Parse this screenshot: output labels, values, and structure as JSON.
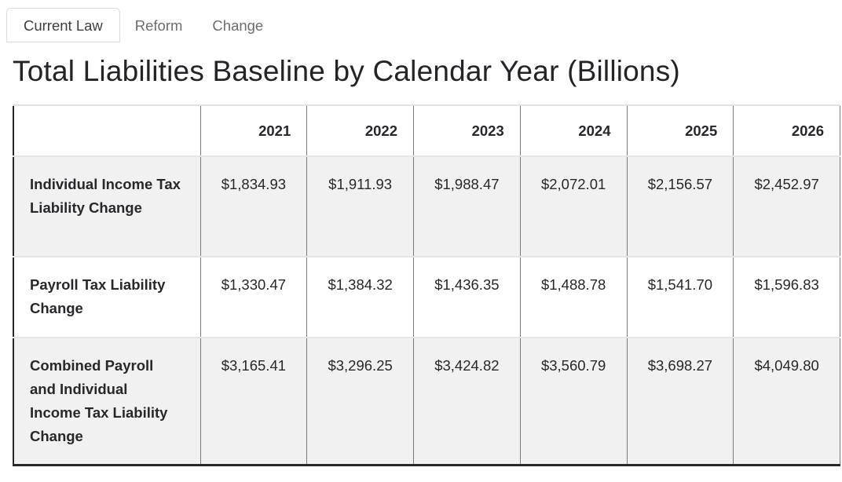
{
  "tabs": [
    {
      "label": "Current Law",
      "active": true
    },
    {
      "label": "Reform",
      "active": false
    },
    {
      "label": "Change",
      "active": false
    }
  ],
  "title": "Total Liabilities Baseline by Calendar Year (Billions)",
  "table": {
    "years": [
      "2021",
      "2022",
      "2023",
      "2024",
      "2025",
      "2026"
    ],
    "rows": [
      {
        "label": "Individual Income Tax Liability Change",
        "values": [
          "$1,834.93",
          "$1,911.93",
          "$1,988.47",
          "$2,072.01",
          "$2,156.57",
          "$2,452.97"
        ]
      },
      {
        "label": "Payroll Tax Liability Change",
        "values": [
          "$1,330.47",
          "$1,384.32",
          "$1,436.35",
          "$1,488.78",
          "$1,541.70",
          "$1,596.83"
        ]
      },
      {
        "label": "Combined Payroll and Individual Income Tax Liability Change",
        "values": [
          "$3,165.41",
          "$3,296.25",
          "$3,424.82",
          "$3,560.79",
          "$3,698.27",
          "$4,049.80"
        ]
      }
    ]
  },
  "colors": {
    "text": "#26282b",
    "tab_inactive": "#6d6d6d",
    "border_dark": "#28282c",
    "border_light": "#e3e5e8",
    "divider": "#7b7b7b",
    "row_stripe": "#f1f1f2",
    "tab_border": "#dcdcdc"
  }
}
